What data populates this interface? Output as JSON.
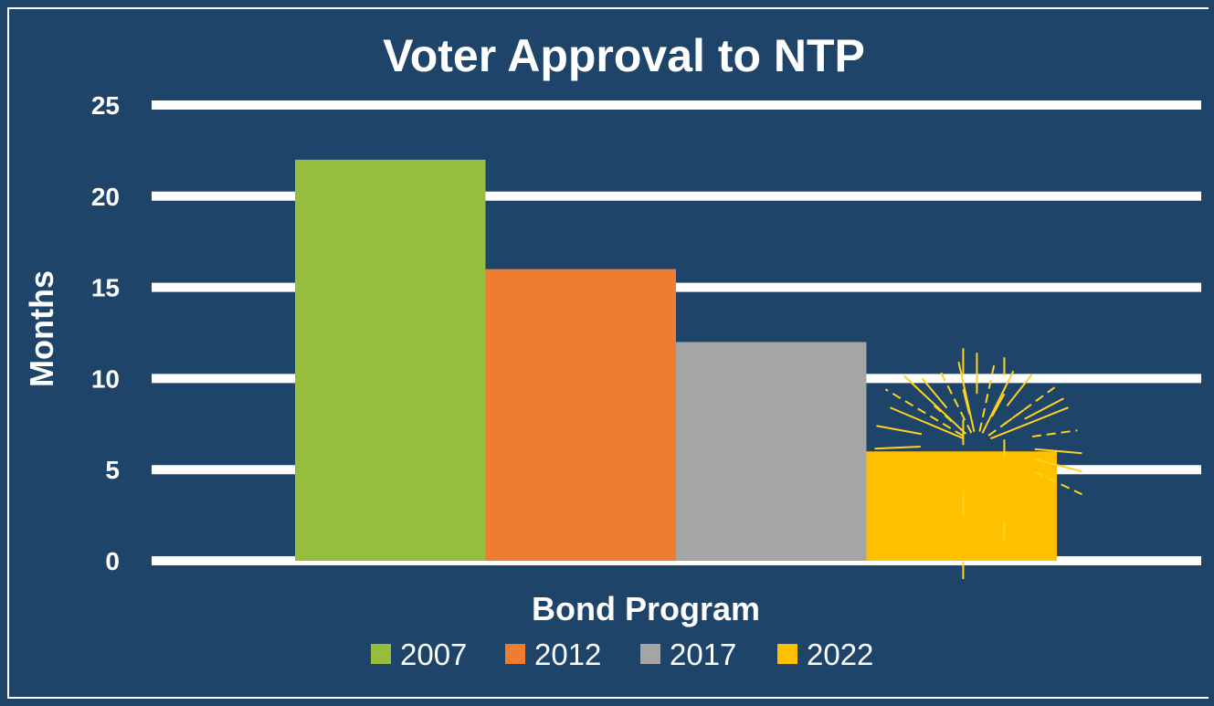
{
  "chart_data": {
    "type": "bar",
    "title": "Voter Approval to NTP",
    "xlabel": "Bond Program",
    "ylabel": "Months",
    "ylim": [
      0,
      25
    ],
    "yticks": [
      0,
      5,
      10,
      15,
      20,
      25
    ],
    "grid": true,
    "legend_position": "bottom",
    "series": [
      {
        "name": "2007",
        "values": [
          22
        ],
        "color": "#97bd3d"
      },
      {
        "name": "2012",
        "values": [
          16
        ],
        "color": "#ed7d31"
      },
      {
        "name": "2017",
        "values": [
          12
        ],
        "color": "#a5a5a5"
      },
      {
        "name": "2022",
        "values": [
          6
        ],
        "color": "#ffc000"
      }
    ],
    "annotations": [
      {
        "type": "sparkle-burst",
        "series": "2022",
        "color": "#ffd21f"
      }
    ],
    "background_color": "#1f4469"
  }
}
